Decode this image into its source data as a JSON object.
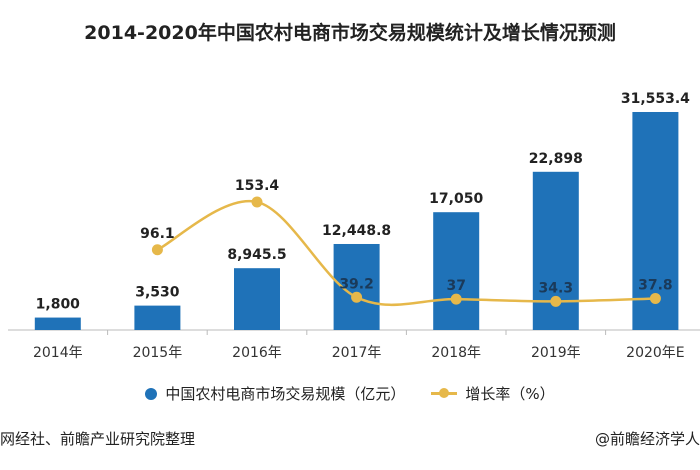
{
  "chart_data": {
    "type": "bar+line",
    "title": "2014-2020年中国农村电商市场交易规模统计及增长情况预测",
    "categories": [
      "2014年",
      "2015年",
      "2016年",
      "2017年",
      "2018年",
      "2019年",
      "2020年E"
    ],
    "series": [
      {
        "name": "中国农村电商市场交易规模（亿元）",
        "type": "bar",
        "values": [
          1800,
          3530,
          8945.5,
          12448.8,
          17050,
          22898,
          31553.4
        ],
        "labels": [
          "1,800",
          "3,530",
          "8,945.5",
          "12,448.8",
          "17,050",
          "22,898",
          "31,553.4"
        ],
        "color": "#1f72b8"
      },
      {
        "name": "增长率（%）",
        "type": "line",
        "values": [
          null,
          96.1,
          153.4,
          39.2,
          37,
          34.3,
          37.8
        ],
        "labels": [
          "",
          "96.1",
          "153.4",
          "39.2",
          "37",
          "34.3",
          "37.8"
        ],
        "color": "#e6b84a"
      }
    ],
    "ylim": [
      0,
      33000
    ],
    "y2lim": [
      0,
      260
    ],
    "grid": false,
    "legend": "bottom"
  },
  "source": "网经社、前瞻产业研究院整理",
  "brand": "@前瞻经济学人"
}
